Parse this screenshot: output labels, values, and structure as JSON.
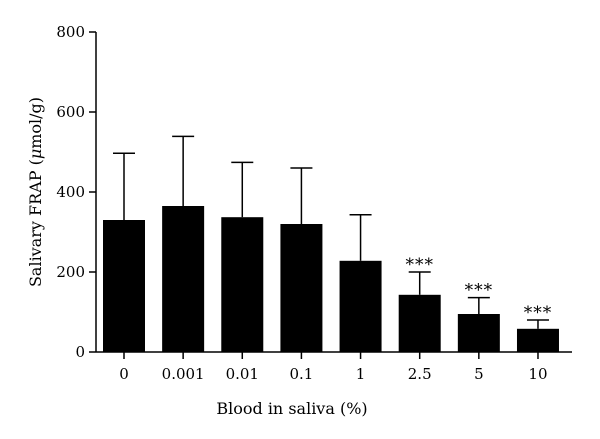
{
  "chart_data": {
    "type": "bar",
    "title": "",
    "xlabel": "Blood in saliva (%)",
    "ylabel_prefix": "Salivary FRAP (",
    "ylabel_unit_mu": "μ",
    "ylabel_suffix": "mol/g)",
    "categories": [
      "0",
      "0.001",
      "0.01",
      "0.1",
      "1",
      "2.5",
      "5",
      "10"
    ],
    "values": [
      330,
      365,
      337,
      320,
      228,
      143,
      95,
      58
    ],
    "error_upper": [
      497,
      539,
      474,
      460,
      343,
      200,
      136,
      80
    ],
    "significance": [
      "",
      "",
      "",
      "",
      "",
      "***",
      "***",
      "***"
    ],
    "ylim": [
      0,
      800
    ],
    "yticks": [
      0,
      200,
      400,
      600,
      800
    ],
    "grid": false,
    "bar_color": "#000000"
  }
}
